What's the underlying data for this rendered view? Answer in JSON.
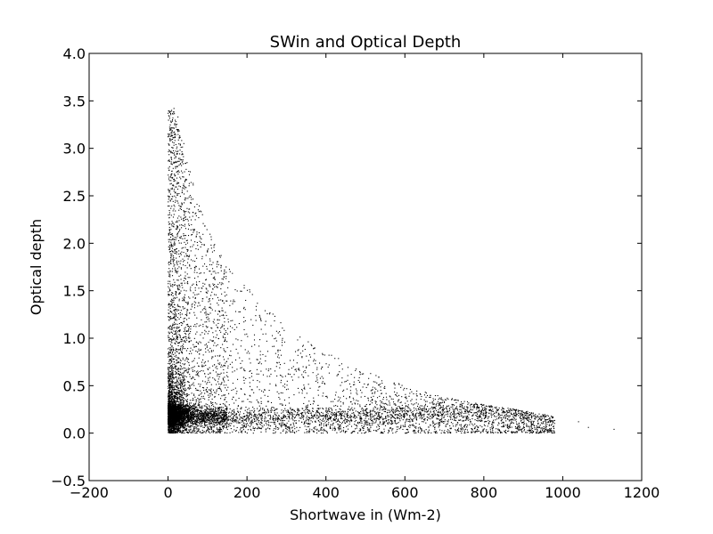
{
  "chart_data": {
    "type": "scatter",
    "title": "SWin and Optical Depth",
    "xlabel": "Shortwave in (Wm-2)",
    "ylabel": "Optical depth",
    "xlim": [
      -200,
      1200
    ],
    "ylim": [
      -0.5,
      4.0
    ],
    "xticks": [
      -200,
      0,
      200,
      400,
      600,
      800,
      1000,
      1200
    ],
    "yticks": [
      -0.5,
      0.0,
      0.5,
      1.0,
      1.5,
      2.0,
      2.5,
      3.0,
      3.5,
      4.0
    ],
    "xtick_labels": [
      "−200",
      "0",
      "200",
      "400",
      "600",
      "800",
      "1000",
      "1200"
    ],
    "ytick_labels": [
      "−0.5",
      "0.0",
      "0.5",
      "1.0",
      "1.5",
      "2.0",
      "2.5",
      "3.0",
      "3.5",
      "4.0"
    ],
    "grid": false,
    "point_color": "#000000",
    "upper_envelope": [
      {
        "x": 15,
        "y": 3.4
      },
      {
        "x": 40,
        "y": 3.0
      },
      {
        "x": 80,
        "y": 2.4
      },
      {
        "x": 100,
        "y": 2.15
      },
      {
        "x": 150,
        "y": 1.8
      },
      {
        "x": 200,
        "y": 1.55
      },
      {
        "x": 300,
        "y": 1.1
      },
      {
        "x": 400,
        "y": 0.85
      },
      {
        "x": 500,
        "y": 0.65
      },
      {
        "x": 600,
        "y": 0.5
      },
      {
        "x": 700,
        "y": 0.38
      },
      {
        "x": 800,
        "y": 0.3
      },
      {
        "x": 900,
        "y": 0.24
      },
      {
        "x": 950,
        "y": 0.2
      },
      {
        "x": 1000,
        "y": 0.17
      },
      {
        "x": 1050,
        "y": 0.12
      },
      {
        "x": 1130,
        "y": 0.05
      }
    ],
    "dense_band": [
      {
        "x": 0,
        "y": 0.2
      },
      {
        "x": 200,
        "y": 0.15
      },
      {
        "x": 400,
        "y": 0.17
      },
      {
        "x": 600,
        "y": 0.2
      },
      {
        "x": 800,
        "y": 0.24
      },
      {
        "x": 950,
        "y": 0.2
      }
    ],
    "outliers": [
      {
        "x": 0,
        "y": 3.15
      },
      {
        "x": 15,
        "y": 3.42
      },
      {
        "x": 25,
        "y": 3.33
      },
      {
        "x": 40,
        "y": 3.05
      },
      {
        "x": 1040,
        "y": 0.12
      },
      {
        "x": 1065,
        "y": 0.06
      },
      {
        "x": 1130,
        "y": 0.04
      }
    ]
  }
}
